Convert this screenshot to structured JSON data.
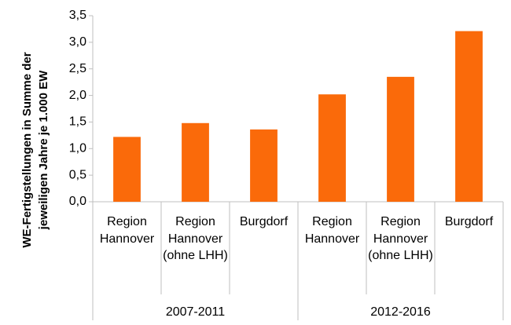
{
  "chart_data": {
    "type": "bar",
    "y_label": "WE-Fertigstellungen in Summe der jeweiligen Jahre je 1.000 EW",
    "groups": [
      {
        "label": "2007-2011",
        "categories": [
          "Region Hannover",
          "Region Hannover (ohne LHH)",
          "Burgdorf"
        ],
        "values": [
          1.22,
          1.48,
          1.36
        ]
      },
      {
        "label": "2012-2016",
        "categories": [
          "Region Hannover",
          "Region Hannover (ohne LHH)",
          "Burgdorf"
        ],
        "values": [
          2.02,
          2.35,
          3.21
        ]
      }
    ],
    "color": "#fa6a0a",
    "ylim": [
      0,
      3.5
    ],
    "yticks": [
      {
        "value": 0,
        "label": "0,0"
      },
      {
        "value": 0.5,
        "label": "0,5"
      },
      {
        "value": 1,
        "label": "1,0"
      },
      {
        "value": 1.5,
        "label": "1,5"
      },
      {
        "value": 2,
        "label": "2,0"
      },
      {
        "value": 2.5,
        "label": "2,5"
      },
      {
        "value": 3,
        "label": "3,0"
      },
      {
        "value": 3.5,
        "label": "3,5"
      }
    ],
    "grid": false
  }
}
